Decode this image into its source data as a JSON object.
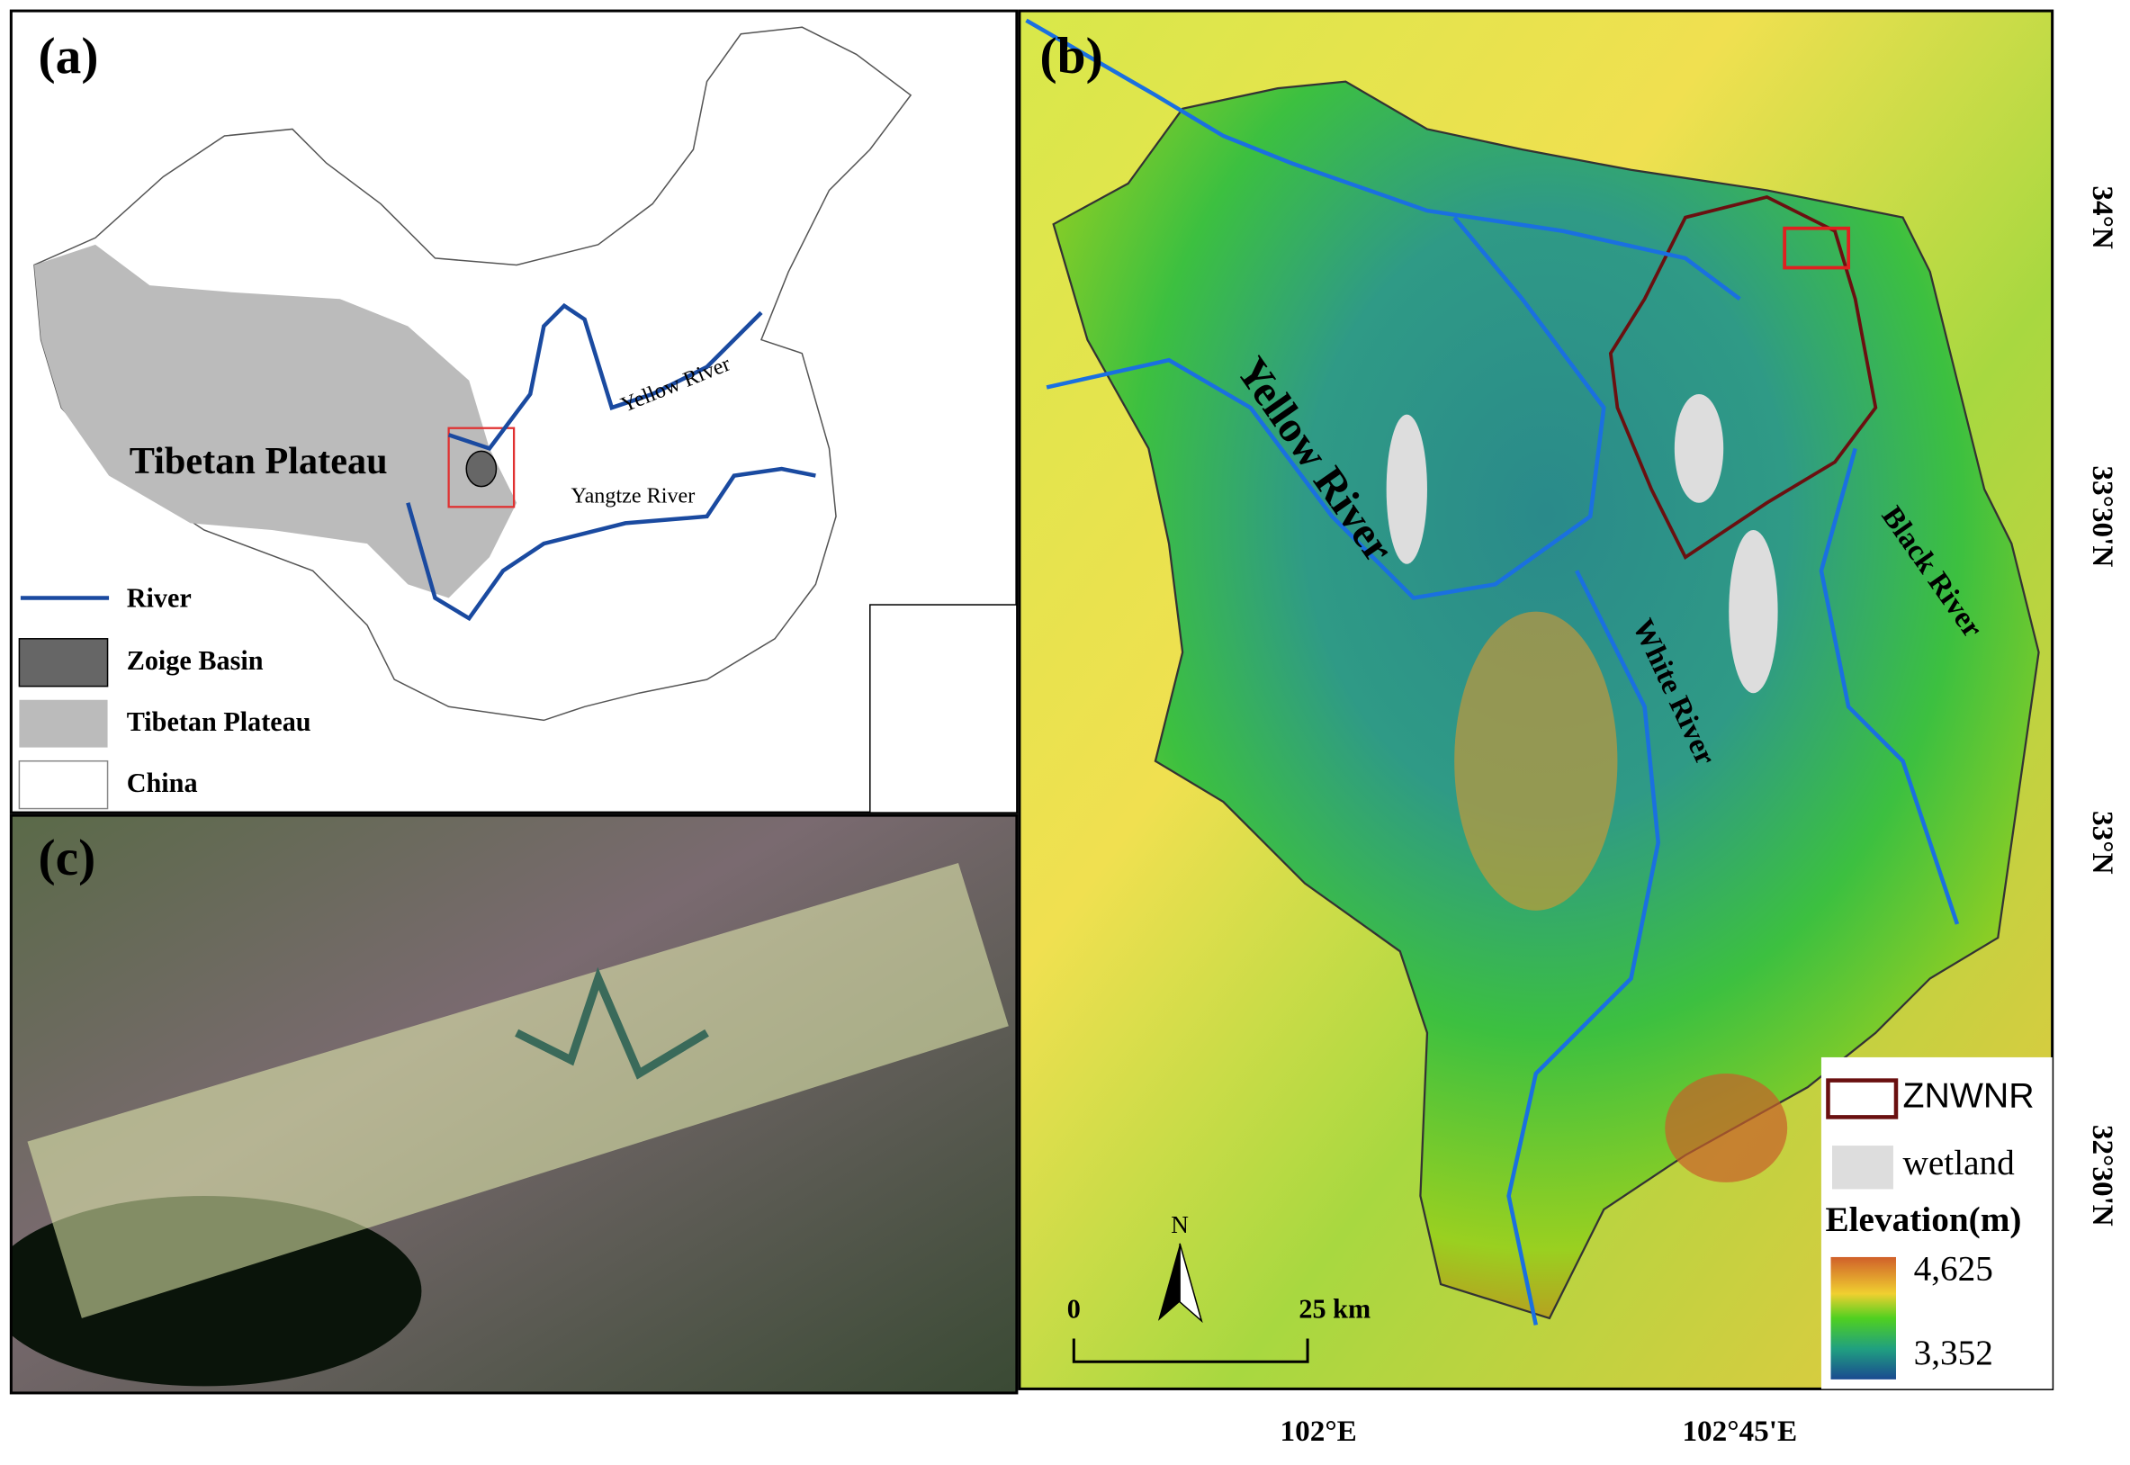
{
  "panels": {
    "a": {
      "label": "(a)",
      "region_label": "Tibetan Plateau",
      "rivers": [
        "Yellow River",
        "Yangtze River"
      ],
      "legend": [
        "River",
        "Zoige Basin",
        "Tibetan Plateau",
        "China"
      ]
    },
    "b": {
      "label": "(b)",
      "rivers": [
        "Yellow River",
        "White River",
        "Black River"
      ],
      "legend": {
        "reserve": "ZNWNR",
        "wetland": "wetland",
        "elevation_title": "Elevation(m)",
        "elevation_max": "4,625",
        "elevation_min": "3,352"
      },
      "north": "N",
      "scale": [
        "0",
        "25 km"
      ],
      "latitudes": [
        "34°N",
        "33°30'N",
        "33°N",
        "32°30'N"
      ],
      "longitudes": [
        "102°E",
        "102°45'E"
      ]
    },
    "c": {
      "label": "(c)"
    }
  }
}
